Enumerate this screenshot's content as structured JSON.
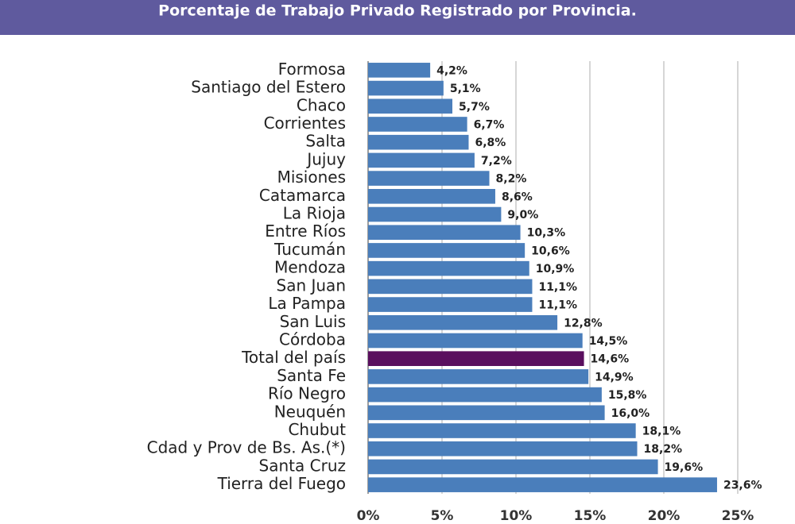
{
  "chart_data": {
    "type": "bar",
    "orientation": "horizontal",
    "title": "Porcentaje de Trabajo Privado Registrado por Provincia.",
    "categories": [
      "Formosa",
      "Santiago del Estero",
      "Chaco",
      "Corrientes",
      "Salta",
      "Jujuy",
      "Misiones",
      "Catamarca",
      "La Rioja",
      "Entre Ríos",
      "Tucumán",
      "Mendoza",
      "San Juan",
      "La Pampa",
      "San Luis",
      "Córdoba",
      "Total del país",
      "Santa Fe",
      "Río Negro",
      "Neuquén",
      "Chubut",
      "Cdad y Prov de Bs. As.(*)",
      "Santa Cruz",
      "Tierra del Fuego"
    ],
    "values": [
      4.2,
      5.1,
      5.7,
      6.7,
      6.8,
      7.2,
      8.2,
      8.6,
      9.0,
      10.3,
      10.6,
      10.9,
      11.1,
      11.1,
      12.8,
      14.5,
      14.6,
      14.9,
      15.8,
      16.0,
      18.1,
      18.2,
      19.6,
      23.6
    ],
    "value_labels": [
      "4,2%",
      "5,1%",
      "5,7%",
      "6,7%",
      "6,8%",
      "7,2%",
      "8,2%",
      "8,6%",
      "9,0%",
      "10,3%",
      "10,6%",
      "10,9%",
      "11,1%",
      "11,1%",
      "12,8%",
      "14,5%",
      "14,6%",
      "14,9%",
      "15,8%",
      "16,0%",
      "18,1%",
      "18,2%",
      "19,6%",
      "23,6%"
    ],
    "colors": [
      "#4a7ebb",
      "#4a7ebb",
      "#4a7ebb",
      "#4a7ebb",
      "#4a7ebb",
      "#4a7ebb",
      "#4a7ebb",
      "#4a7ebb",
      "#4a7ebb",
      "#4a7ebb",
      "#4a7ebb",
      "#4a7ebb",
      "#4a7ebb",
      "#4a7ebb",
      "#4a7ebb",
      "#4a7ebb",
      "#5a0f5e",
      "#4a7ebb",
      "#4a7ebb",
      "#4a7ebb",
      "#4a7ebb",
      "#4a7ebb",
      "#4a7ebb",
      "#4a7ebb"
    ],
    "xlim": [
      0,
      25
    ],
    "xticks": [
      {
        "value": 0,
        "label": "0%"
      },
      {
        "value": 5,
        "label": "5%"
      },
      {
        "value": 10,
        "label": "10%"
      },
      {
        "value": 15,
        "label": "15%"
      },
      {
        "value": 20,
        "label": "20%"
      },
      {
        "value": 25,
        "label": "25%"
      }
    ],
    "grid": true
  }
}
